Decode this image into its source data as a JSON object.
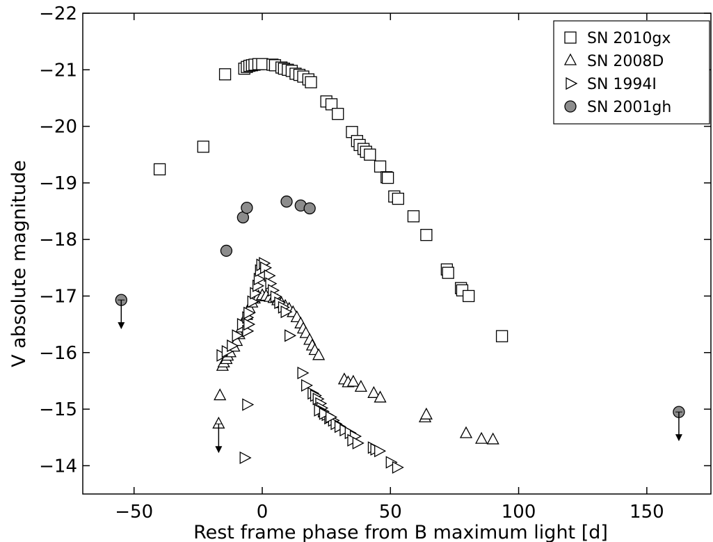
{
  "chart_data": {
    "type": "scatter",
    "title": "",
    "xlabel": "Rest frame phase from B maximum light [d]",
    "ylabel": "V absolute magnitude",
    "xlim": [
      -70,
      175
    ],
    "ylim": [
      -13.5,
      -22
    ],
    "y_inverted": true,
    "grid": false,
    "legend_position": "top-right",
    "x_ticks": [
      -50,
      0,
      50,
      100,
      150
    ],
    "x_tick_labels": [
      "−50",
      "0",
      "50",
      "100",
      "150"
    ],
    "y_ticks": [
      -14,
      -15,
      -16,
      -17,
      -18,
      -19,
      -20,
      -21,
      -22
    ],
    "y_tick_labels": [
      "−14",
      "−15",
      "−16",
      "−17",
      "−18",
      "−19",
      "−20",
      "−21",
      "−22"
    ],
    "series": [
      {
        "name": "SN 2010gx",
        "marker": "square",
        "fill": "#ffffff",
        "points": [
          [
            -40.0,
            -19.24
          ],
          [
            -23.0,
            -19.64
          ],
          [
            -14.5,
            -20.92
          ],
          [
            -7.0,
            -21.02
          ],
          [
            -6.0,
            -21.05
          ],
          [
            -5.0,
            -21.07
          ],
          [
            -4.0,
            -21.08
          ],
          [
            -3.0,
            -21.09
          ],
          [
            -1.5,
            -21.1
          ],
          [
            0.0,
            -21.1
          ],
          [
            4.0,
            -21.09
          ],
          [
            5.0,
            -21.08
          ],
          [
            7.5,
            -21.04
          ],
          [
            8.5,
            -21.02
          ],
          [
            10.0,
            -21.0
          ],
          [
            11.5,
            -20.98
          ],
          [
            13.0,
            -20.93
          ],
          [
            14.5,
            -20.91
          ],
          [
            16.0,
            -20.88
          ],
          [
            18.0,
            -20.83
          ],
          [
            19.0,
            -20.78
          ],
          [
            25.0,
            -20.44
          ],
          [
            27.0,
            -20.39
          ],
          [
            29.5,
            -20.22
          ],
          [
            35.0,
            -19.9
          ],
          [
            37.0,
            -19.74
          ],
          [
            38.0,
            -19.67
          ],
          [
            39.5,
            -19.6
          ],
          [
            40.5,
            -19.55
          ],
          [
            42.0,
            -19.5
          ],
          [
            46.0,
            -19.29
          ],
          [
            48.5,
            -19.1
          ],
          [
            49.0,
            -19.09
          ],
          [
            51.5,
            -18.76
          ],
          [
            53.0,
            -18.72
          ],
          [
            59.0,
            -18.41
          ],
          [
            64.0,
            -18.08
          ],
          [
            72.0,
            -17.47
          ],
          [
            72.5,
            -17.41
          ],
          [
            77.5,
            -17.14
          ],
          [
            78.0,
            -17.1
          ],
          [
            80.5,
            -17.0
          ],
          [
            93.5,
            -16.29
          ]
        ]
      },
      {
        "name": "SN 2008D",
        "marker": "triangle-up",
        "fill": "#ffffff",
        "points": [
          [
            -17.0,
            -14.74
          ],
          [
            -16.5,
            -15.24
          ],
          [
            -15.5,
            -15.76
          ],
          [
            -15.0,
            -15.82
          ],
          [
            -14.0,
            -15.88
          ],
          [
            -13.5,
            -15.94
          ],
          [
            -12.5,
            -16.0
          ],
          [
            -11.0,
            -16.1
          ],
          [
            -10.0,
            -16.2
          ],
          [
            -9.0,
            -16.32
          ],
          [
            -8.0,
            -16.44
          ],
          [
            -7.0,
            -16.56
          ],
          [
            -6.0,
            -16.66
          ],
          [
            -5.0,
            -16.78
          ],
          [
            -4.0,
            -16.88
          ],
          [
            -3.0,
            -16.95
          ],
          [
            -1.5,
            -16.99
          ],
          [
            0.0,
            -17.01
          ],
          [
            1.5,
            -17.0
          ],
          [
            3.0,
            -16.98
          ],
          [
            4.5,
            -16.96
          ],
          [
            6.0,
            -16.92
          ],
          [
            7.5,
            -16.87
          ],
          [
            9.0,
            -16.82
          ],
          [
            10.5,
            -16.77
          ],
          [
            12.0,
            -16.71
          ],
          [
            13.5,
            -16.62
          ],
          [
            15.0,
            -16.51
          ],
          [
            16.0,
            -16.42
          ],
          [
            17.0,
            -16.34
          ],
          [
            18.5,
            -16.22
          ],
          [
            19.5,
            -16.12
          ],
          [
            20.5,
            -16.04
          ],
          [
            22.0,
            -15.95
          ],
          [
            32.0,
            -15.52
          ],
          [
            33.5,
            -15.47
          ],
          [
            35.5,
            -15.48
          ],
          [
            38.5,
            -15.39
          ],
          [
            43.5,
            -15.28
          ],
          [
            46.0,
            -15.2
          ],
          [
            63.5,
            -14.85
          ],
          [
            64.0,
            -14.9
          ],
          [
            79.5,
            -14.57
          ],
          [
            85.5,
            -14.47
          ],
          [
            90.0,
            -14.46
          ]
        ]
      },
      {
        "name": "SN 1994I",
        "marker": "triangle-right",
        "fill": "#ffffff",
        "points": [
          [
            -7.0,
            -14.14
          ],
          [
            -6.0,
            -15.08
          ],
          [
            -16.0,
            -15.95
          ],
          [
            -14.0,
            -16.02
          ],
          [
            -12.0,
            -16.12
          ],
          [
            -10.0,
            -16.3
          ],
          [
            -8.0,
            -16.5
          ],
          [
            -6.0,
            -16.62
          ],
          [
            -5.5,
            -16.7
          ],
          [
            -4.0,
            -16.9
          ],
          [
            -3.0,
            -17.05
          ],
          [
            -2.0,
            -17.18
          ],
          [
            -1.5,
            -17.3
          ],
          [
            -1.0,
            -17.45
          ],
          [
            -0.5,
            -17.55
          ],
          [
            0.5,
            -17.58
          ],
          [
            1.0,
            -17.5
          ],
          [
            2.5,
            -17.36
          ],
          [
            3.0,
            -17.22
          ],
          [
            4.0,
            -17.1
          ],
          [
            5.0,
            -16.99
          ],
          [
            6.5,
            -16.88
          ],
          [
            8.0,
            -16.8
          ],
          [
            9.0,
            -16.72
          ],
          [
            -6.0,
            -16.38
          ],
          [
            -5.5,
            -16.5
          ],
          [
            10.5,
            -16.3
          ],
          [
            15.5,
            -15.64
          ],
          [
            17.0,
            -15.42
          ],
          [
            19.5,
            -15.28
          ],
          [
            20.5,
            -15.24
          ],
          [
            21.5,
            -15.18
          ],
          [
            22.5,
            -15.1
          ],
          [
            23.0,
            -15.02
          ],
          [
            23.5,
            -14.96
          ],
          [
            25.0,
            -14.9
          ],
          [
            26.0,
            -14.84
          ],
          [
            27.5,
            -14.8
          ],
          [
            28.5,
            -14.74
          ],
          [
            30.0,
            -14.69
          ],
          [
            32.0,
            -14.63
          ],
          [
            34.0,
            -14.58
          ],
          [
            36.0,
            -14.52
          ],
          [
            22.0,
            -14.98
          ],
          [
            24.0,
            -14.92
          ],
          [
            26.5,
            -14.86
          ],
          [
            35.0,
            -14.45
          ],
          [
            37.0,
            -14.4
          ],
          [
            43.0,
            -14.32
          ],
          [
            44.0,
            -14.29
          ],
          [
            45.5,
            -14.26
          ],
          [
            50.0,
            -14.06
          ],
          [
            52.5,
            -13.97
          ]
        ]
      },
      {
        "name": "SN 2001gh",
        "marker": "circle",
        "fill": "#8c8c8c",
        "points": [
          [
            -55.0,
            -16.93
          ],
          [
            -14.0,
            -17.8
          ],
          [
            -7.5,
            -18.39
          ],
          [
            -6.0,
            -18.56
          ],
          [
            9.5,
            -18.67
          ],
          [
            15.0,
            -18.6
          ],
          [
            18.5,
            -18.55
          ],
          [
            162.5,
            -14.95
          ]
        ]
      }
    ],
    "upper_limits": [
      {
        "series": "SN 2001gh",
        "x": -55.0,
        "y": -16.93
      },
      {
        "series": "SN 2001gh",
        "x": 162.5,
        "y": -14.95
      },
      {
        "series": "SN 2008D",
        "x": -17.0,
        "y": -14.74
      }
    ]
  }
}
